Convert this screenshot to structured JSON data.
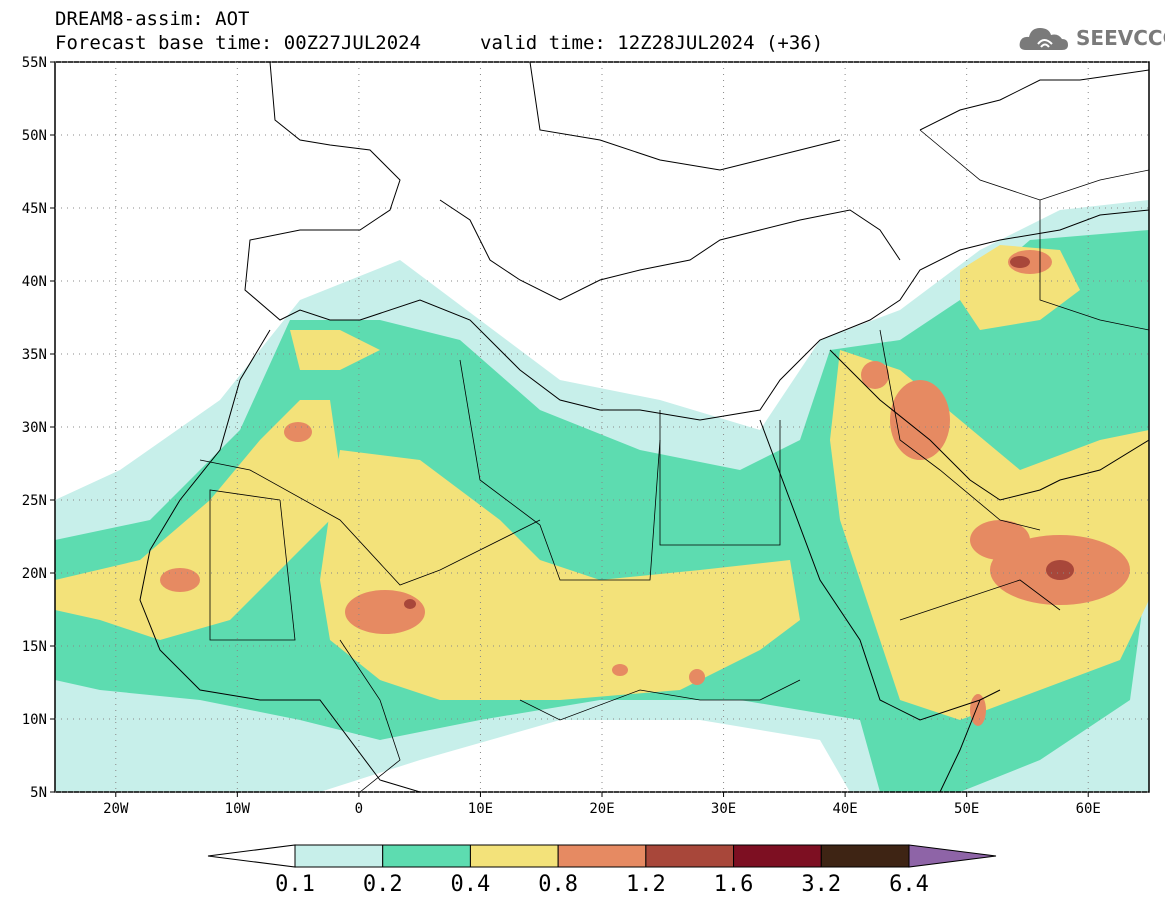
{
  "header": {
    "title": "DREAM8-assim: AOT",
    "base_time": "Forecast base time: 00Z27JUL2024",
    "valid_time": "valid time: 12Z28JUL2024 (+36)"
  },
  "logo": {
    "text": "SEEVCCC",
    "icon": "cloud-icon"
  },
  "map": {
    "lat_labels": [
      "55N",
      "50N",
      "45N",
      "40N",
      "35N",
      "30N",
      "25N",
      "20N",
      "15N",
      "10N",
      "5N"
    ],
    "lon_labels": [
      "20W",
      "10W",
      "0",
      "10E",
      "20E",
      "30E",
      "40E",
      "50E",
      "60E"
    ],
    "lat_range": [
      5,
      55
    ],
    "lon_range": [
      -25,
      65
    ],
    "grid": "dotted"
  },
  "colorbar": {
    "labels": [
      "0.1",
      "0.2",
      "0.4",
      "0.8",
      "1.2",
      "1.6",
      "3.2",
      "6.4"
    ],
    "colors": [
      "#ffffff",
      "#c7efea",
      "#5ddcb0",
      "#f3e27a",
      "#e68a62",
      "#a8473a",
      "#7d0f22",
      "#3e2414",
      "#8e64a7"
    ]
  }
}
